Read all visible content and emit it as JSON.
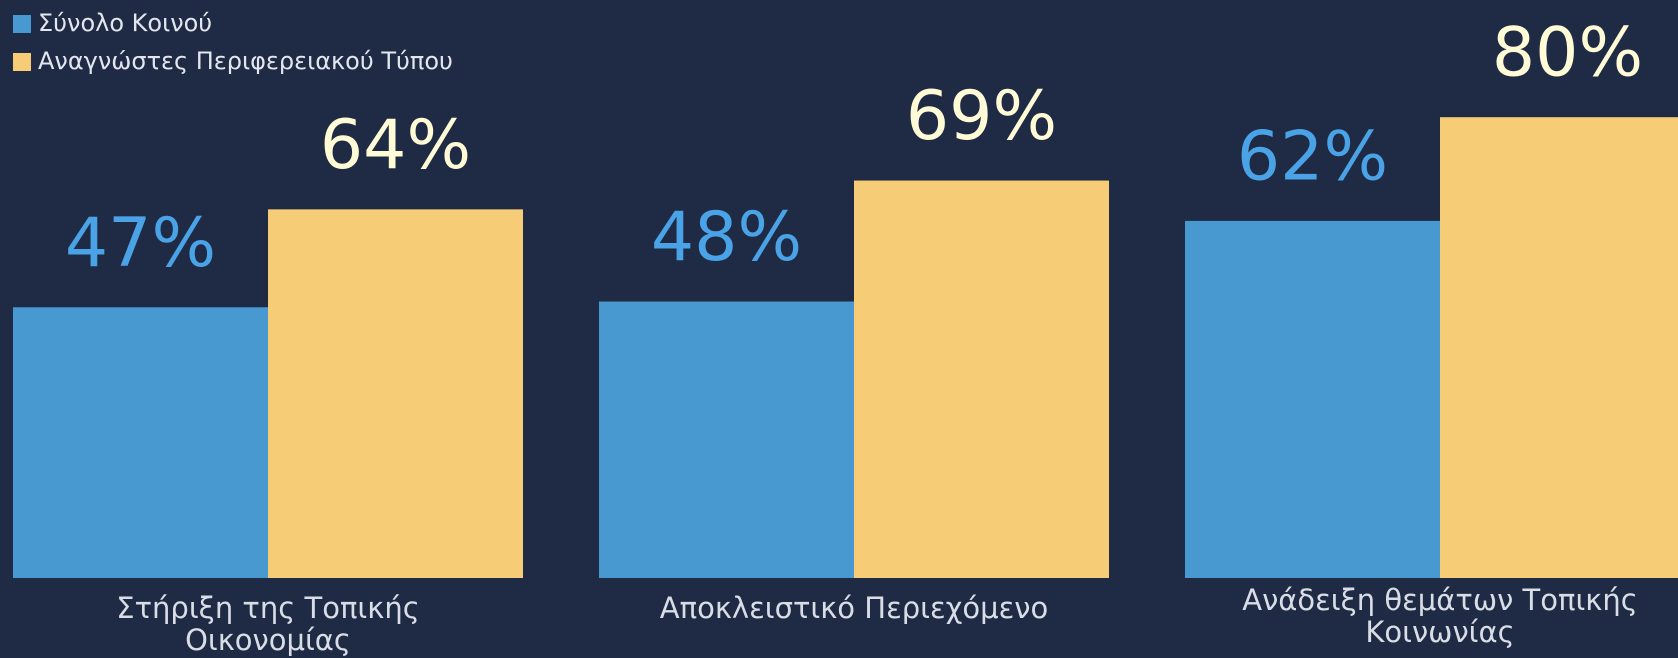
{
  "chart_data": {
    "type": "bar",
    "categories": [
      "Στήριξη της Τοπικής Οικονομίας",
      "Αποκλειστικό Περιεχόμενο",
      "Ανάδειξη θεμάτων Τοπικής Κοινωνίας"
    ],
    "series": [
      {
        "name": "Σύνολο Κοινού",
        "color": "#4799d0",
        "label_color": "#4aa3e6",
        "values": [
          47,
          48,
          62
        ],
        "value_labels": [
          "47%",
          "48%",
          "62%"
        ]
      },
      {
        "name": "Αναγνώστες Περιφερειακού Τύπου",
        "color": "#f7cc76",
        "label_color": "#fffbd6",
        "values": [
          64,
          69,
          80
        ],
        "value_labels": [
          "64%",
          "69%",
          "80%"
        ]
      }
    ],
    "ylim": [
      0,
      100
    ],
    "legend": "top-left"
  }
}
